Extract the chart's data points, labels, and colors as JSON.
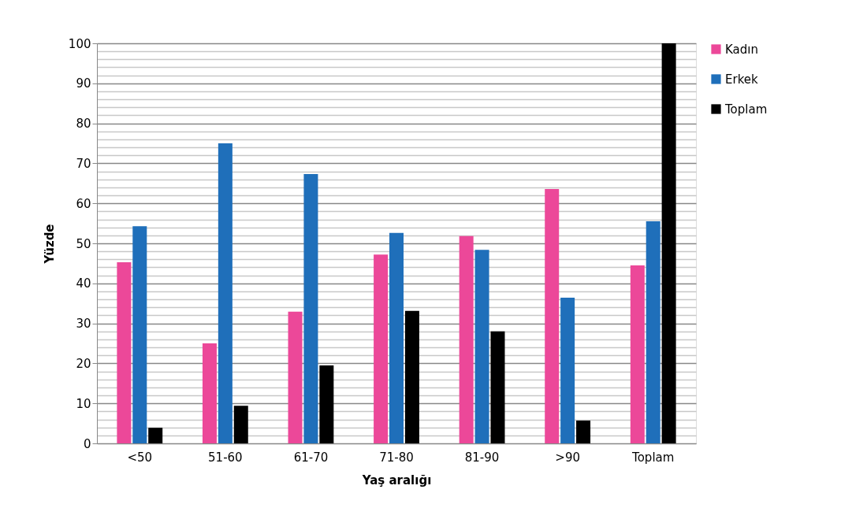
{
  "chart_data": {
    "type": "bar",
    "xlabel": "Yaş aralığı",
    "ylabel": "Yüzde",
    "categories": [
      "<50",
      "51-60",
      "61-70",
      "71-80",
      "81-90",
      ">90",
      "Toplam"
    ],
    "series": [
      {
        "name": "Kadın",
        "color": "#ec4899",
        "values": [
          45.3,
          25.0,
          32.9,
          47.2,
          51.8,
          63.6,
          44.5
        ]
      },
      {
        "name": "Erkek",
        "color": "#1f6fba",
        "values": [
          54.3,
          75.0,
          67.3,
          52.6,
          48.4,
          36.4,
          55.5
        ]
      },
      {
        "name": "Toplam",
        "color": "#000000",
        "values": [
          3.9,
          9.4,
          19.5,
          33.1,
          28.0,
          5.7,
          100
        ]
      }
    ],
    "ylim": [
      0,
      100
    ],
    "yticks": [
      0,
      {
        "value": 2,
        "label": null
      },
      {
        "value": 4,
        "label": null
      },
      {
        "value": 6,
        "label": null
      },
      {
        "value": 8,
        "label": null
      },
      10,
      {
        "value": 12,
        "label": null
      },
      {
        "value": 14,
        "label": null
      },
      {
        "value": 16,
        "label": null
      },
      {
        "value": 18,
        "label": null
      },
      20,
      {
        "value": 22,
        "label": null
      },
      {
        "value": 24,
        "label": null
      },
      {
        "value": 26,
        "label": null
      },
      {
        "value": 28,
        "label": null
      },
      30,
      {
        "value": 32,
        "label": null
      },
      {
        "value": 34,
        "label": null
      },
      {
        "value": 36,
        "label": null
      },
      {
        "value": 38,
        "label": null
      },
      40,
      {
        "value": 42,
        "label": null
      },
      {
        "value": 44,
        "label": null
      },
      {
        "value": 46,
        "label": null
      },
      {
        "value": 48,
        "label": null
      },
      50,
      {
        "value": 52,
        "label": null
      },
      {
        "value": 54,
        "label": null
      },
      {
        "value": 56,
        "label": null
      },
      {
        "value": 58,
        "label": null
      },
      60,
      {
        "value": 62,
        "label": null
      },
      {
        "value": 64,
        "label": null
      },
      {
        "value": 66,
        "label": null
      },
      {
        "value": 68,
        "label": null
      },
      70,
      {
        "value": 72,
        "label": null
      },
      {
        "value": 74,
        "label": null
      },
      {
        "value": 76,
        "label": null
      },
      {
        "value": 78,
        "label": null
      },
      80,
      {
        "value": 82,
        "label": null
      },
      {
        "value": 84,
        "label": null
      },
      {
        "value": 86,
        "label": null
      },
      {
        "value": 88,
        "label": null
      },
      90,
      {
        "value": 92,
        "label": null
      },
      {
        "value": 94,
        "label": null
      },
      {
        "value": 96,
        "label": null
      },
      {
        "value": 98,
        "label": null
      },
      100
    ],
    "grid": true,
    "legend": "right"
  }
}
